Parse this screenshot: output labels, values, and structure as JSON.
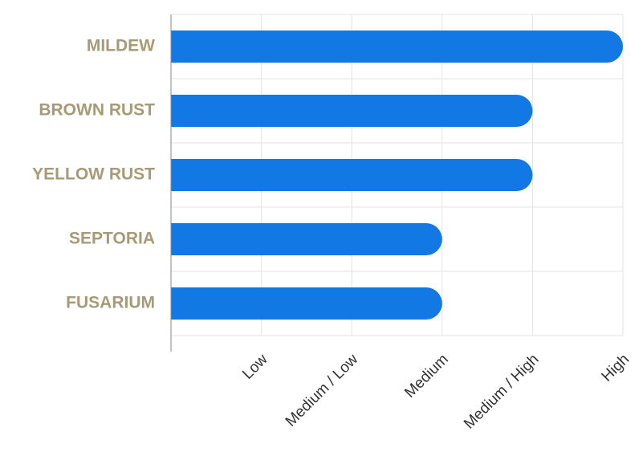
{
  "chart_data": {
    "type": "bar",
    "orientation": "horizontal",
    "categories": [
      "MILDEW",
      "BROWN RUST",
      "YELLOW RUST",
      "SEPTORIA",
      "FUSARIUM"
    ],
    "values": [
      5,
      4,
      4,
      3,
      3
    ],
    "x_ticks": [
      "Low",
      "Medium / Low",
      "Medium",
      "Medium / High",
      "High"
    ],
    "xlim": [
      0,
      5
    ],
    "title": "",
    "xlabel": "",
    "ylabel": "",
    "grid": true,
    "legend": "none"
  },
  "colors": {
    "bar": "#1278e3",
    "category_label": "#a89a76",
    "gridline": "#e3e3e3",
    "axis": "#8a8a8a"
  }
}
